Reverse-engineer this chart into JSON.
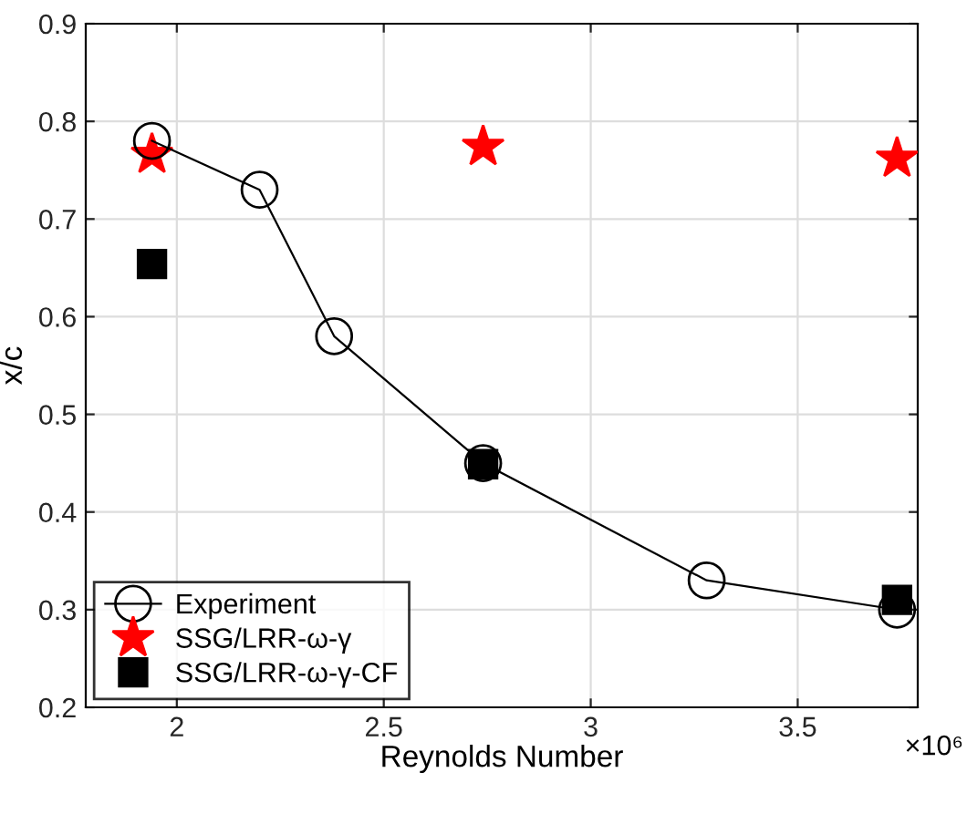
{
  "chart_data": {
    "type": "line",
    "xlabel": "Reynolds Number",
    "ylabel": "x/c",
    "annotations": [
      "×10⁶"
    ],
    "xlim": [
      1.78,
      3.79
    ],
    "xticks": [
      2,
      2.5,
      3,
      3.5
    ],
    "ylim": [
      0.2,
      0.9
    ],
    "yticks": [
      0.2,
      0.3,
      0.4,
      0.5,
      0.6,
      0.7,
      0.8,
      0.9
    ],
    "grid": true,
    "legend": "bottom left",
    "series": [
      {
        "name": "Experiment",
        "color": "#000000",
        "marker": "circle",
        "line_style": "solid",
        "x": [
          1.94,
          2.2,
          2.38,
          2.74,
          3.28,
          3.74
        ],
        "values": [
          0.78,
          0.73,
          0.58,
          0.45,
          0.33,
          0.3
        ]
      },
      {
        "name": "SSG/LRR-ω-γ",
        "type": "scatter",
        "color": "#ff0000",
        "marker": "star",
        "x": [
          1.94,
          2.74,
          3.74
        ],
        "values": [
          0.766,
          0.774,
          0.762
        ]
      },
      {
        "name": "SSG/LRR-ω-γ-CF",
        "type": "scatter",
        "color": "#000000",
        "marker": "square",
        "x": [
          1.94,
          2.74,
          3.74
        ],
        "values": [
          0.654,
          0.449,
          0.31
        ]
      }
    ]
  }
}
